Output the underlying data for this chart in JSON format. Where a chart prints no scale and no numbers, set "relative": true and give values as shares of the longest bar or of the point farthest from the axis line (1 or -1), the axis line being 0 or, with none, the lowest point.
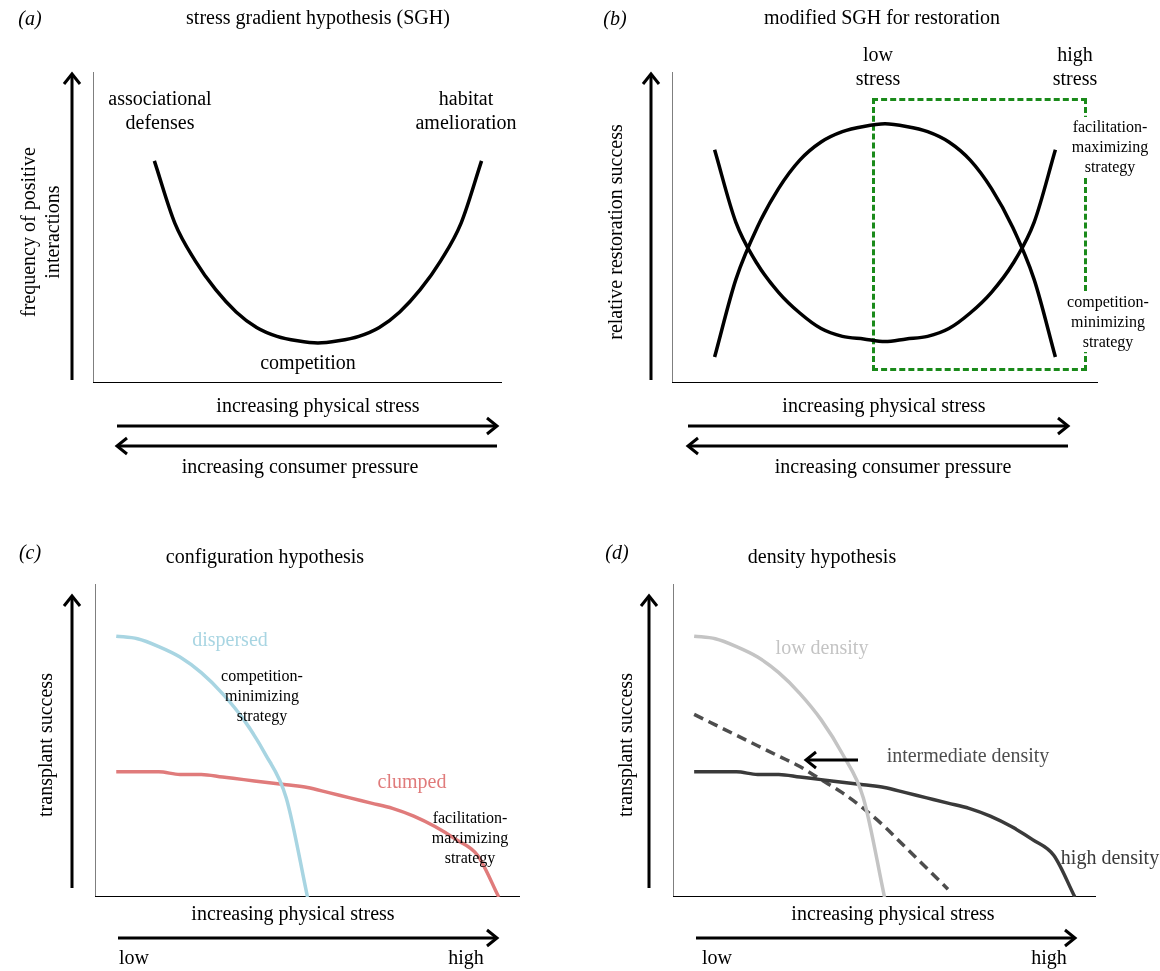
{
  "chart_data": [
    {
      "type": "line",
      "title": "stress gradient hypothesis (SGH)",
      "xlabel": "increasing physical stress",
      "ylabel": "frequency of positive interactions",
      "relative": true,
      "categories": [
        null,
        null,
        null,
        null,
        null,
        null,
        null,
        null,
        null,
        null,
        null,
        null,
        null,
        null,
        null,
        null,
        null,
        null,
        null,
        null,
        null
      ],
      "series": [
        {
          "color": "#000000",
          "values": [
            null,
            null,
            null,
            1.0,
            0.72,
            0.55,
            0.42,
            0.32,
            0.25,
            0.21,
            0.19,
            0.18,
            0.19,
            0.21,
            0.25,
            0.32,
            0.42,
            0.55,
            0.72,
            1.0,
            null
          ]
        }
      ],
      "annotations": [
        "(a)",
        "associational defenses",
        "habitat amelioration",
        "competition",
        "increasing consumer pressure"
      ]
    },
    {
      "type": "line",
      "title": "modified SGH for restoration",
      "xlabel": "increasing physical stress",
      "ylabel": "relative restoration success",
      "relative": true,
      "categories": [
        null,
        null,
        null,
        null,
        null,
        null,
        null,
        null,
        null,
        null,
        null,
        null,
        null,
        null,
        null,
        null,
        null,
        null,
        null,
        null,
        null
      ],
      "series": [
        {
          "color": "#000000",
          "values": [
            null,
            null,
            0.1,
            0.4,
            0.6,
            0.75,
            0.86,
            0.93,
            0.97,
            0.99,
            1.0,
            0.99,
            0.97,
            0.93,
            0.86,
            0.75,
            0.6,
            0.4,
            0.1,
            null,
            null
          ]
        },
        {
          "color": "#000000",
          "values": [
            null,
            null,
            0.9,
            0.62,
            0.46,
            0.35,
            0.27,
            0.21,
            0.18,
            0.17,
            0.16,
            0.17,
            0.18,
            0.21,
            0.27,
            0.35,
            0.46,
            0.62,
            0.9,
            null,
            null
          ]
        }
      ],
      "annotations": [
        "(b)",
        "low stress",
        "high stress",
        "facilitation-maximizing strategy",
        "competition-minimizing strategy",
        "increasing consumer pressure"
      ]
    },
    {
      "type": "line",
      "title": "configuration hypothesis",
      "xlabel": "increasing physical stress",
      "ylabel": "transplant success",
      "relative": true,
      "categories": [
        null,
        null,
        null,
        null,
        null,
        null,
        null,
        null,
        null,
        null,
        null,
        null,
        null,
        null,
        null,
        null,
        null,
        null,
        null,
        null,
        null
      ],
      "series": [
        {
          "name": "dispersed",
          "color": "#a8d5e2",
          "values": [
            null,
            1.0,
            0.99,
            0.96,
            0.92,
            0.86,
            0.78,
            0.68,
            0.55,
            0.38,
            0.0,
            null,
            null,
            null,
            null,
            null,
            null,
            null,
            null,
            null,
            null
          ]
        },
        {
          "name": "clumped",
          "color": "#e07b7b",
          "values": [
            null,
            0.48,
            0.48,
            0.48,
            0.47,
            0.47,
            0.46,
            0.45,
            0.44,
            0.43,
            0.42,
            0.4,
            0.38,
            0.36,
            0.34,
            0.31,
            0.27,
            0.22,
            0.16,
            0.0,
            null
          ]
        }
      ],
      "annotations": [
        "(c)",
        "competition-minimizing strategy",
        "facilitation-maximizing strategy",
        "low",
        "high"
      ]
    },
    {
      "type": "line",
      "title": "density hypothesis",
      "xlabel": "increasing physical stress",
      "ylabel": "transplant success",
      "relative": true,
      "categories": [
        null,
        null,
        null,
        null,
        null,
        null,
        null,
        null,
        null,
        null,
        null,
        null,
        null,
        null,
        null,
        null,
        null,
        null,
        null,
        null,
        null
      ],
      "series": [
        {
          "name": "low density",
          "color": "#c4c4c4",
          "values": [
            null,
            1.0,
            0.99,
            0.96,
            0.92,
            0.86,
            0.78,
            0.68,
            0.55,
            0.38,
            0.0,
            null,
            null,
            null,
            null,
            null,
            null,
            null,
            null,
            null,
            null
          ]
        },
        {
          "name": "high density",
          "color": "#3a3a3a",
          "values": [
            null,
            0.48,
            0.48,
            0.48,
            0.47,
            0.47,
            0.46,
            0.45,
            0.44,
            0.43,
            0.42,
            0.4,
            0.38,
            0.36,
            0.34,
            0.31,
            0.27,
            0.22,
            0.16,
            0.0,
            null
          ]
        },
        {
          "name": "intermediate density",
          "color": "#4d4d4d",
          "line_style": "dashed",
          "values": [
            null,
            0.7,
            0.66,
            0.62,
            0.58,
            0.54,
            0.5,
            0.45,
            0.4,
            0.34,
            0.27,
            0.19,
            0.11,
            0.03,
            null,
            null,
            null,
            null,
            null,
            null,
            null
          ]
        }
      ],
      "annotations": [
        "(d)",
        "low",
        "high"
      ]
    }
  ]
}
